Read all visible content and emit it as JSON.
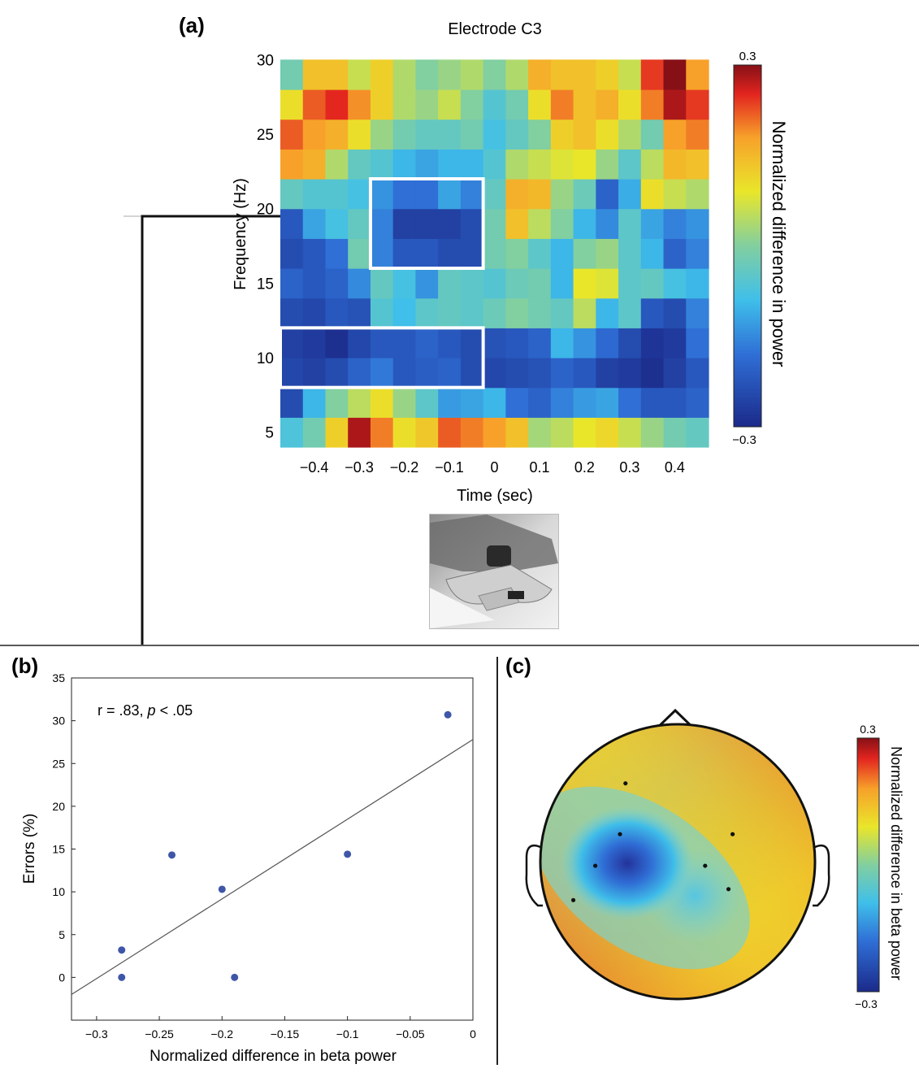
{
  "panels": {
    "a": {
      "label": "(a)",
      "chart_data": {
        "type": "heatmap",
        "title": "Electrode C3",
        "xlabel": "Time (sec)",
        "ylabel": "Frequency (Hz)",
        "x_ticks": [
          -0.4,
          -0.3,
          -0.2,
          -0.1,
          0,
          0.1,
          0.2,
          0.3,
          0.4
        ],
        "x_tick_labels": [
          "−0.4",
          "−0.3",
          "−0.2",
          "−0.1",
          "0",
          "0.1",
          "0.2",
          "0.3",
          "0.4"
        ],
        "y_ticks": [
          5,
          10,
          15,
          20,
          25,
          30
        ],
        "y_tick_labels": [
          "5",
          "10",
          "15",
          "20",
          "25",
          "30"
        ],
        "xlim": [
          -0.475,
          0.475
        ],
        "ylim": [
          4,
          31
        ],
        "time_bins": [
          -0.45,
          -0.4,
          -0.35,
          -0.3,
          -0.25,
          -0.2,
          -0.15,
          -0.1,
          -0.05,
          0,
          0.05,
          0.1,
          0.15,
          0.2,
          0.25,
          0.3,
          0.35,
          0.4,
          0.45
        ],
        "freq_bins": [
          5,
          7,
          9,
          11,
          13,
          15,
          17,
          19,
          21,
          23,
          25,
          27,
          29
        ],
        "values": [
          [
            -0.07,
            -0.02,
            0.12,
            0.28,
            0.2,
            0.1,
            0.13,
            0.22,
            0.2,
            0.18,
            0.14,
            0.03,
            0.05,
            0.09,
            0.11,
            0.06,
            0.02,
            -0.02,
            -0.04
          ],
          [
            -0.24,
            -0.1,
            0.0,
            0.05,
            0.1,
            0.02,
            -0.05,
            -0.13,
            -0.12,
            -0.1,
            -0.18,
            -0.2,
            -0.16,
            -0.13,
            -0.12,
            -0.18,
            -0.22,
            -0.22,
            -0.2
          ],
          [
            -0.25,
            -0.26,
            -0.24,
            -0.2,
            -0.17,
            -0.22,
            -0.21,
            -0.2,
            -0.24,
            -0.25,
            -0.24,
            -0.23,
            -0.2,
            -0.22,
            -0.26,
            -0.27,
            -0.29,
            -0.26,
            -0.22
          ],
          [
            -0.26,
            -0.27,
            -0.29,
            -0.25,
            -0.22,
            -0.22,
            -0.2,
            -0.22,
            -0.24,
            -0.23,
            -0.22,
            -0.2,
            -0.1,
            -0.14,
            -0.19,
            -0.24,
            -0.28,
            -0.27,
            -0.18
          ],
          [
            -0.24,
            -0.25,
            -0.22,
            -0.23,
            -0.06,
            -0.09,
            -0.05,
            -0.04,
            -0.05,
            -0.03,
            0.0,
            -0.02,
            -0.04,
            0.05,
            -0.1,
            -0.05,
            -0.22,
            -0.24,
            -0.16
          ],
          [
            -0.2,
            -0.22,
            -0.2,
            -0.15,
            -0.04,
            -0.08,
            -0.14,
            -0.04,
            -0.05,
            -0.06,
            -0.03,
            -0.02,
            -0.1,
            0.09,
            0.08,
            -0.05,
            -0.04,
            -0.08,
            -0.1
          ],
          [
            -0.24,
            -0.22,
            -0.18,
            -0.02,
            -0.16,
            -0.22,
            -0.22,
            -0.24,
            -0.24,
            -0.02,
            0.0,
            -0.05,
            -0.1,
            0.0,
            0.02,
            -0.05,
            -0.1,
            -0.2,
            -0.16
          ],
          [
            -0.22,
            -0.12,
            -0.08,
            -0.04,
            -0.16,
            -0.26,
            -0.26,
            -0.26,
            -0.24,
            -0.02,
            0.14,
            0.05,
            0.0,
            -0.1,
            -0.15,
            -0.05,
            -0.12,
            -0.16,
            -0.14
          ],
          [
            -0.04,
            -0.06,
            -0.06,
            -0.08,
            -0.14,
            -0.18,
            -0.18,
            -0.12,
            -0.16,
            -0.04,
            0.16,
            0.15,
            0.02,
            -0.03,
            -0.2,
            -0.11,
            0.1,
            0.06,
            0.04
          ],
          [
            0.18,
            0.16,
            0.04,
            -0.04,
            -0.06,
            -0.1,
            -0.12,
            -0.1,
            -0.1,
            -0.06,
            0.04,
            0.06,
            0.08,
            0.09,
            0.02,
            -0.05,
            0.05,
            0.15,
            0.14
          ],
          [
            0.22,
            0.18,
            0.16,
            0.1,
            0.02,
            -0.02,
            -0.04,
            -0.04,
            -0.02,
            -0.08,
            -0.04,
            0.0,
            0.12,
            0.14,
            0.1,
            0.04,
            -0.02,
            0.18,
            0.2
          ],
          [
            0.1,
            0.22,
            0.25,
            0.19,
            0.12,
            0.04,
            0.02,
            0.06,
            0.0,
            -0.06,
            -0.02,
            0.1,
            0.2,
            0.14,
            0.16,
            0.1,
            0.2,
            0.28,
            0.24
          ],
          [
            -0.02,
            0.14,
            0.14,
            0.06,
            0.12,
            0.04,
            0.0,
            0.02,
            0.04,
            0.0,
            0.04,
            0.16,
            0.14,
            0.14,
            0.12,
            0.06,
            0.24,
            0.3,
            0.18
          ]
        ],
        "highlight_boxes": [
          {
            "time": [
              -0.275,
              -0.025
            ],
            "freq": [
              16,
              22
            ]
          },
          {
            "time": [
              -0.475,
              -0.025
            ],
            "freq": [
              8,
              12
            ]
          }
        ],
        "colorbar": {
          "label": "Normalized difference in power",
          "max_label": "0.3",
          "min_label": "−0.3",
          "range": [
            -0.3,
            0.3
          ]
        }
      }
    },
    "b": {
      "label": "(b)",
      "annotation_prefix": "r = .83, ",
      "annotation_p": "p",
      "annotation_suffix": " < .05",
      "chart_data": {
        "type": "scatter",
        "xlabel": "Normalized difference in beta power",
        "ylabel": "Errors (%)",
        "xlim": [
          -0.32,
          0.0
        ],
        "ylim": [
          -5,
          35
        ],
        "x_ticks": [
          -0.3,
          -0.25,
          -0.2,
          -0.15,
          -0.1,
          -0.05,
          0
        ],
        "x_tick_labels": [
          "−0.3",
          "−0.25",
          "−0.2",
          "−0.15",
          "−0.1",
          "−0.05",
          "0"
        ],
        "y_ticks": [
          0,
          5,
          10,
          15,
          20,
          25,
          30,
          35
        ],
        "y_tick_labels": [
          "0",
          "5",
          "10",
          "15",
          "20",
          "25",
          "30",
          "35"
        ],
        "points": [
          {
            "x": -0.28,
            "y": 3.2
          },
          {
            "x": -0.28,
            "y": 0
          },
          {
            "x": -0.24,
            "y": 14.3
          },
          {
            "x": -0.2,
            "y": 10.3
          },
          {
            "x": -0.19,
            "y": 0
          },
          {
            "x": -0.1,
            "y": 14.4
          },
          {
            "x": -0.02,
            "y": 30.7
          }
        ],
        "fit_line": {
          "x": [
            -0.32,
            0.0
          ],
          "y": [
            -2.0,
            27.8
          ]
        },
        "colors": {
          "points": "#3f56a8",
          "line": "#555555"
        }
      }
    },
    "c": {
      "label": "(c)",
      "chart_data": {
        "type": "heatmap",
        "description_type": "scalp topography",
        "electrodes": [
          {
            "x": -0.38,
            "y": -0.57
          },
          {
            "x": -0.42,
            "y": -0.2
          },
          {
            "x": -0.6,
            "y": 0.03
          },
          {
            "x": -0.76,
            "y": 0.28
          },
          {
            "x": 0.4,
            "y": -0.2
          },
          {
            "x": 0.2,
            "y": 0.03
          },
          {
            "x": 0.37,
            "y": 0.2
          }
        ],
        "minimum_center": {
          "x": -0.38,
          "y": -0.2
        },
        "colorbar": {
          "label": "Normalized difference in beta power",
          "max_label": "0.3",
          "min_label": "−0.3",
          "range": [
            -0.3,
            0.3
          ]
        }
      }
    }
  }
}
